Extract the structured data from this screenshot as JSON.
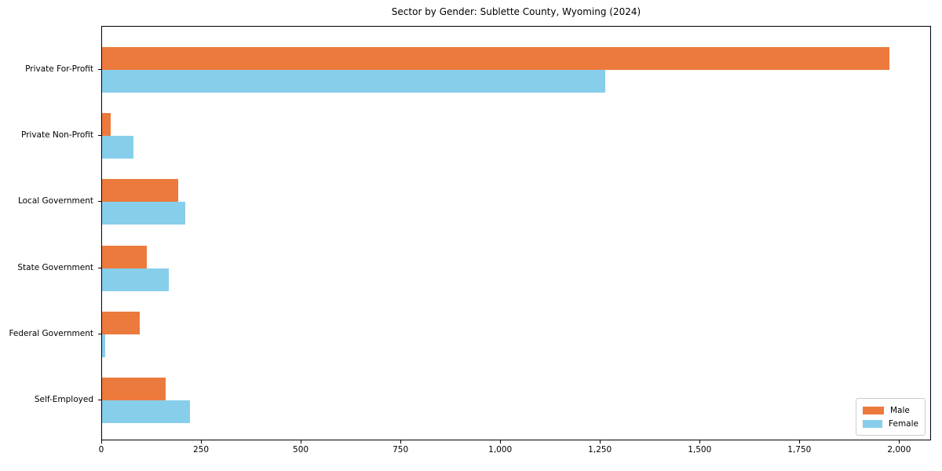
{
  "title": "Sector by Gender: Sublette County, Wyoming (2024)",
  "colors": {
    "male": "#EC7A3D",
    "female": "#87CEEB",
    "spine": "#000000",
    "legend_border": "#CCCCCC",
    "background": "#FFFFFF"
  },
  "chart_data": {
    "type": "bar",
    "orientation": "horizontal",
    "title": "Sector by Gender: Sublette County, Wyoming (2024)",
    "xlabel": "",
    "ylabel": "",
    "grid": false,
    "legend_position": "lower right",
    "categories": [
      "Private For-Profit",
      "Private Non-Profit",
      "Local Government",
      "State Government",
      "Federal Government",
      "Self-Employed"
    ],
    "series": [
      {
        "name": "Male",
        "color": "#EC7A3D",
        "values": [
          1978,
          22,
          191,
          113,
          94,
          159
        ]
      },
      {
        "name": "Female",
        "color": "#87CEEB",
        "values": [
          1264,
          79,
          208,
          167,
          8,
          220
        ]
      }
    ],
    "xlim": [
      0,
      2080
    ],
    "xticks": [
      0,
      250,
      500,
      750,
      1000,
      1250,
      1500,
      1750,
      2000
    ],
    "xtick_labels": [
      "0",
      "250",
      "500",
      "750",
      "1,000",
      "1,250",
      "1,500",
      "1,750",
      "2,000"
    ]
  },
  "legend": {
    "male_label": "Male",
    "female_label": "Female"
  }
}
